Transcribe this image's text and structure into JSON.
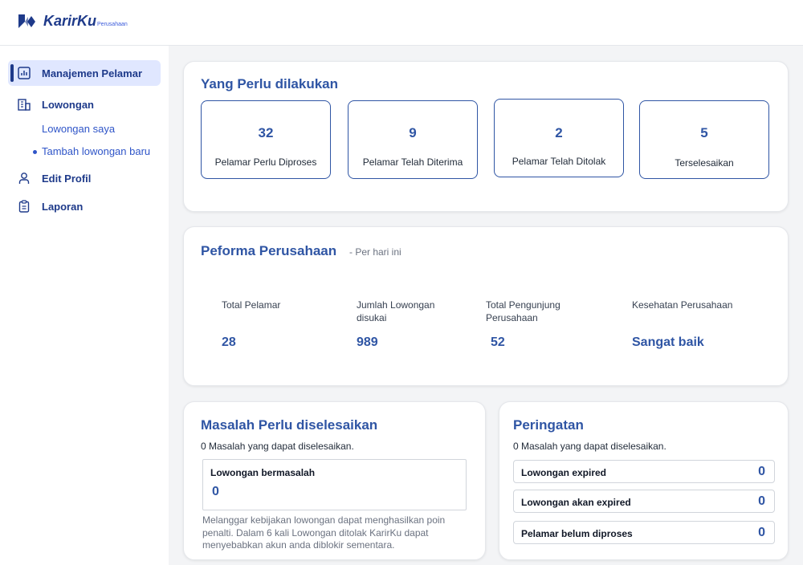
{
  "app": {
    "brand": "KarirKu",
    "brand_sub": "Perusahaan"
  },
  "sidebar": {
    "items": [
      {
        "label": "Manajemen Pelamar",
        "icon": "bar-chart-icon",
        "active": true
      },
      {
        "label": "Lowongan",
        "icon": "building-icon"
      },
      {
        "label": "Edit Profil",
        "icon": "user-icon"
      },
      {
        "label": "Laporan",
        "icon": "clipboard-icon"
      }
    ],
    "subitems": [
      {
        "label": "Lowongan saya"
      },
      {
        "label": "Tambah lowongan baru"
      }
    ]
  },
  "todo": {
    "title": "Yang Perlu dilakukan",
    "stats": [
      {
        "value": "32",
        "label": "Pelamar Perlu Diproses"
      },
      {
        "value": "9",
        "label": "Pelamar Telah Diterima"
      },
      {
        "value": "2",
        "label": "Pelamar Telah Ditolak"
      },
      {
        "value": "5",
        "label": "Terselesaikan"
      }
    ]
  },
  "performance": {
    "title": "Peforma Perusahaan",
    "subtitle": "- Per hari ini",
    "metrics": [
      {
        "label": "Total Pelamar",
        "value": "28"
      },
      {
        "label": "Jumlah Lowongan disukai",
        "value": "989"
      },
      {
        "label": "Total Pengunjung Perusahaan",
        "value": "52"
      },
      {
        "label": "Kesehatan Perusahaan",
        "value": "Sangat baik"
      }
    ]
  },
  "issues": {
    "title": "Masalah Perlu diselesaikan",
    "summary": "0 Masalah yang dapat diselesaikan.",
    "box_label": "Lowongan bermasalah",
    "box_value": "0",
    "note": "Melanggar kebijakan lowongan dapat menghasilkan poin penalti. Dalam 6 kali Lowongan ditolak KarirKu dapat menyebabkan akun anda diblokir sementara."
  },
  "warnings": {
    "title": "Peringatan",
    "summary": "0 Masalah yang dapat diselesaikan.",
    "rows": [
      {
        "label": "Lowongan expired",
        "count": "0"
      },
      {
        "label": "Lowongan akan expired",
        "count": "0"
      },
      {
        "label": "Pelamar belum diproses",
        "count": "0"
      }
    ]
  },
  "colors": {
    "primary": "#2f55a4",
    "navy": "#1e3a8a",
    "active_bg": "#e0e7ff"
  }
}
